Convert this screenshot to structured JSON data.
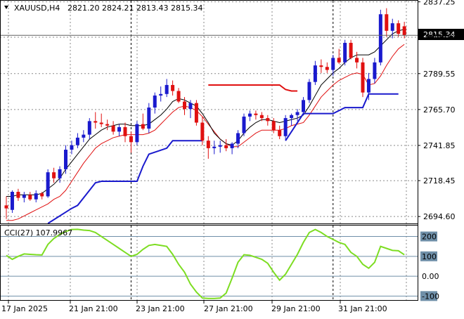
{
  "header": {
    "symbol_label": "XAUUSD,H4",
    "ohlc": "2821.20 2824.21 2813.43 2815.34",
    "menu_arrow": "triangle-down-icon"
  },
  "indicator": {
    "label": "CCI(27) 107.9967",
    "levels": [
      "200",
      "100",
      "0.00",
      "-100"
    ]
  },
  "colors": {
    "bull": "#1a1acd",
    "bear": "#e01010",
    "ma_fast": "#000000",
    "ma_slow": "#e01010",
    "stop_up": "#1a1acd",
    "stop_down": "#e01010",
    "cci": "#7ddd22",
    "level_line": "#6f8fa8",
    "grid": "#8a8a8a",
    "price_tag_bg": "#000000",
    "price_tag_fg": "#ffffff"
  },
  "chart_data": [
    {
      "type": "candlestick",
      "title": "XAUUSD,H4",
      "price_axis_ticks": [
        "2837.25",
        "2813.70",
        "2789.55",
        "2765.70",
        "2741.85",
        "2718.45",
        "2694.60"
      ],
      "current_price_tag": "2815.34",
      "x_ticks": [
        "17 Jan 2025",
        "21 Jan 21:00",
        "23 Jan 21:00",
        "27 Jan 21:00",
        "29 Jan 21:00",
        "31 Jan 21:00"
      ],
      "ylim": [
        2690,
        2838
      ],
      "candles": [
        [
          2702,
          2708,
          2693,
          2700
        ],
        [
          2699,
          2712,
          2697,
          2711
        ],
        [
          2711,
          2713,
          2705,
          2707
        ],
        [
          2707,
          2711,
          2704,
          2709
        ],
        [
          2709,
          2711,
          2705,
          2706
        ],
        [
          2706,
          2712,
          2704,
          2710
        ],
        [
          2710,
          2711,
          2706,
          2708
        ],
        [
          2708,
          2726,
          2707,
          2724
        ],
        [
          2724,
          2727,
          2717,
          2720
        ],
        [
          2720,
          2728,
          2717,
          2726
        ],
        [
          2726,
          2742,
          2723,
          2739
        ],
        [
          2739,
          2745,
          2736,
          2742
        ],
        [
          2742,
          2750,
          2740,
          2747
        ],
        [
          2747,
          2752,
          2744,
          2749
        ],
        [
          2749,
          2760,
          2746,
          2758
        ],
        [
          2758,
          2764,
          2753,
          2757
        ],
        [
          2757,
          2763,
          2754,
          2756
        ],
        [
          2756,
          2759,
          2752,
          2755
        ],
        [
          2755,
          2758,
          2749,
          2751
        ],
        [
          2751,
          2756,
          2748,
          2754
        ],
        [
          2754,
          2757,
          2744,
          2748
        ],
        [
          2748,
          2751,
          2737,
          2744
        ],
        [
          2744,
          2758,
          2742,
          2756
        ],
        [
          2756,
          2763,
          2752,
          2753
        ],
        [
          2753,
          2770,
          2750,
          2767
        ],
        [
          2767,
          2777,
          2763,
          2775
        ],
        [
          2775,
          2781,
          2771,
          2776
        ],
        [
          2776,
          2786,
          2774,
          2782
        ],
        [
          2782,
          2785,
          2775,
          2778
        ],
        [
          2778,
          2780,
          2770,
          2771
        ],
        [
          2771,
          2774,
          2762,
          2766
        ],
        [
          2766,
          2772,
          2760,
          2770
        ],
        [
          2770,
          2772,
          2755,
          2757
        ],
        [
          2757,
          2761,
          2742,
          2745
        ],
        [
          2745,
          2748,
          2733,
          2740
        ],
        [
          2740,
          2745,
          2736,
          2741
        ],
        [
          2741,
          2745,
          2737,
          2742
        ],
        [
          2742,
          2746,
          2738,
          2740
        ],
        [
          2740,
          2744,
          2736,
          2743
        ],
        [
          2743,
          2752,
          2740,
          2750
        ],
        [
          2750,
          2763,
          2748,
          2761
        ],
        [
          2761,
          2765,
          2758,
          2763
        ],
        [
          2763,
          2765,
          2759,
          2762
        ],
        [
          2762,
          2764,
          2758,
          2760
        ],
        [
          2760,
          2762,
          2755,
          2758
        ],
        [
          2758,
          2760,
          2750,
          2752
        ],
        [
          2752,
          2755,
          2746,
          2748
        ],
        [
          2748,
          2762,
          2745,
          2760
        ],
        [
          2760,
          2763,
          2755,
          2762
        ],
        [
          2762,
          2766,
          2758,
          2764
        ],
        [
          2764,
          2774,
          2762,
          2772
        ],
        [
          2772,
          2786,
          2770,
          2784
        ],
        [
          2784,
          2798,
          2782,
          2795
        ],
        [
          2795,
          2799,
          2790,
          2794
        ],
        [
          2794,
          2797,
          2790,
          2792
        ],
        [
          2792,
          2802,
          2788,
          2800
        ],
        [
          2800,
          2806,
          2796,
          2797
        ],
        [
          2797,
          2812,
          2795,
          2810
        ],
        [
          2810,
          2812,
          2799,
          2800
        ],
        [
          2800,
          2804,
          2793,
          2797
        ],
        [
          2797,
          2800,
          2774,
          2777
        ],
        [
          2777,
          2790,
          2772,
          2786
        ],
        [
          2786,
          2800,
          2783,
          2797
        ],
        [
          2797,
          2832,
          2795,
          2829
        ],
        [
          2829,
          2833,
          2814,
          2818
        ],
        [
          2818,
          2826,
          2813,
          2823
        ],
        [
          2823,
          2825,
          2814,
          2816
        ],
        [
          2821,
          2824,
          2813,
          2815
        ]
      ],
      "ma_fast": [
        2708,
        2708,
        2709,
        2709,
        2709,
        2709,
        2710,
        2713,
        2716,
        2720,
        2726,
        2731,
        2736,
        2741,
        2746,
        2749,
        2752,
        2754,
        2755,
        2756,
        2756,
        2755,
        2755,
        2755,
        2756,
        2759,
        2762,
        2766,
        2771,
        2773,
        2772,
        2770,
        2768,
        2763,
        2757,
        2750,
        2746,
        2743,
        2742,
        2745,
        2750,
        2754,
        2757,
        2759,
        2759,
        2758,
        2757,
        2758,
        2759,
        2760,
        2762,
        2768,
        2775,
        2782,
        2786,
        2790,
        2793,
        2797,
        2800,
        2802,
        2802,
        2802,
        2804,
        2808,
        2812,
        2816,
        2818,
        2819
      ],
      "ma_slow": [
        2692,
        2692,
        2693,
        2695,
        2697,
        2699,
        2701,
        2703,
        2706,
        2708,
        2712,
        2718,
        2724,
        2730,
        2735,
        2740,
        2743,
        2745,
        2747,
        2748,
        2749,
        2749,
        2749,
        2749,
        2750,
        2752,
        2756,
        2760,
        2764,
        2767,
        2768,
        2767,
        2765,
        2761,
        2756,
        2751,
        2746,
        2743,
        2741,
        2741,
        2744,
        2747,
        2750,
        2752,
        2752,
        2752,
        2752,
        2753,
        2755,
        2756,
        2757,
        2762,
        2768,
        2774,
        2778,
        2782,
        2785,
        2787,
        2789,
        2790,
        2789,
        2782,
        2783,
        2788,
        2795,
        2801,
        2806,
        2809
      ],
      "stop_segments": [
        {
          "direction": "up",
          "points": [
            [
              7,
              2690
            ],
            [
              11,
              2700
            ],
            [
              12,
              2702
            ],
            [
              14,
              2712
            ],
            [
              15,
              2717
            ],
            [
              16,
              2718
            ],
            [
              22,
              2718
            ],
            [
              23,
              2728
            ],
            [
              24,
              2736
            ],
            [
              27,
              2740
            ],
            [
              28,
              2745
            ],
            [
              33,
              2745
            ]
          ]
        },
        {
          "direction": "down",
          "points": [
            [
              34,
              2782
            ],
            [
              46,
              2782
            ],
            [
              47,
              2779
            ],
            [
              48,
              2778
            ],
            [
              49,
              2778
            ]
          ]
        },
        {
          "direction": "up",
          "points": [
            [
              47,
              2745
            ],
            [
              50,
              2763
            ],
            [
              55,
              2763
            ],
            [
              56,
              2765
            ],
            [
              57,
              2767
            ],
            [
              60,
              2767
            ],
            [
              61,
              2776
            ],
            [
              66,
              2776
            ]
          ]
        }
      ],
      "cci": [
        105,
        85,
        100,
        112,
        110,
        108,
        107,
        160,
        190,
        210,
        225,
        235,
        236,
        232,
        230,
        220,
        200,
        180,
        160,
        140,
        120,
        100,
        110,
        135,
        155,
        160,
        155,
        150,
        110,
        60,
        20,
        -40,
        -80,
        -110,
        -112,
        -112,
        -110,
        -85,
        -10,
        70,
        108,
        105,
        95,
        85,
        65,
        20,
        -20,
        10,
        60,
        110,
        170,
        220,
        235,
        220,
        200,
        185,
        170,
        160,
        120,
        100,
        60,
        40,
        70,
        150,
        140,
        130,
        128,
        108
      ],
      "cci_ylim": [
        -120,
        255
      ],
      "cci_level_values": [
        200,
        100,
        0,
        -100
      ],
      "vertical_markers": [
        21,
        55
      ]
    }
  ]
}
